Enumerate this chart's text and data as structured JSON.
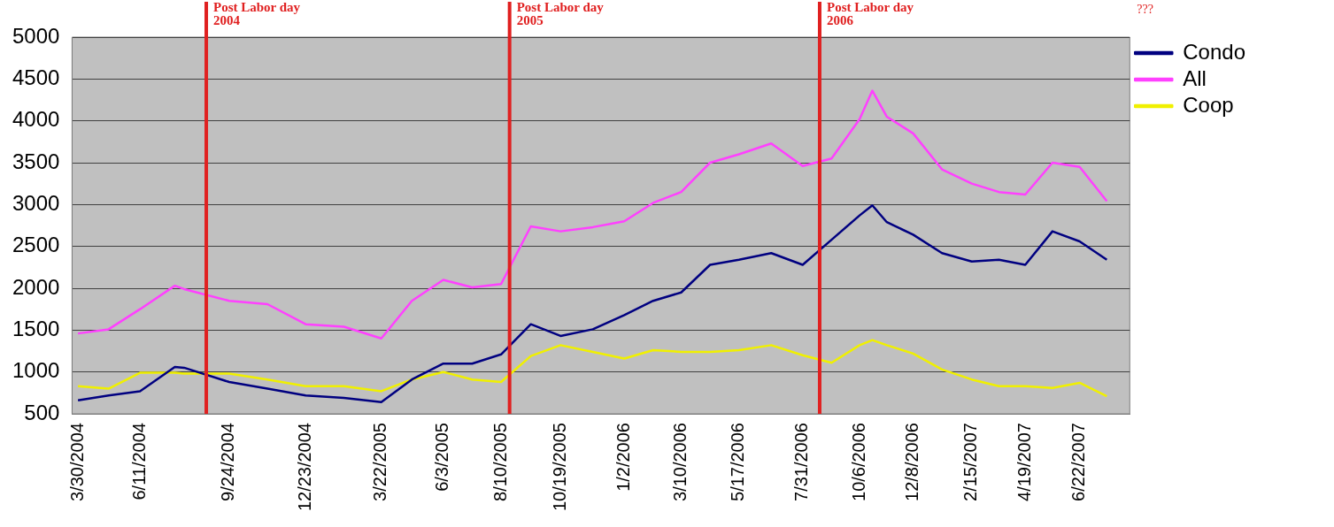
{
  "chart_data": {
    "type": "line",
    "x": [
      "2004-03-30",
      "2004-05-05",
      "2004-06-11",
      "2004-07-22",
      "2004-08-02",
      "2004-09-24",
      "2004-11-08",
      "2004-12-23",
      "2005-02-06",
      "2005-03-22",
      "2005-04-27",
      "2005-06-03",
      "2005-07-07",
      "2005-08-10",
      "2005-09-14",
      "2005-10-19",
      "2005-11-26",
      "2006-01-02",
      "2006-02-05",
      "2006-03-10",
      "2006-04-13",
      "2006-05-17",
      "2006-06-24",
      "2006-07-31",
      "2006-09-03",
      "2006-10-06",
      "2006-10-21",
      "2006-11-07",
      "2006-12-08",
      "2007-01-11",
      "2007-02-15",
      "2007-03-19",
      "2007-04-19",
      "2007-05-21",
      "2007-06-22",
      "2007-07-24"
    ],
    "series": [
      {
        "name": "Condo",
        "color": "#000080",
        "values": [
          660,
          720,
          770,
          1060,
          1050,
          880,
          800,
          720,
          690,
          640,
          910,
          1100,
          1100,
          1210,
          1570,
          1430,
          1510,
          1680,
          1850,
          1950,
          2280,
          2340,
          2420,
          2280,
          2580,
          2870,
          2990,
          2790,
          2640,
          2420,
          2320,
          2340,
          2280,
          2680,
          2560,
          2340
        ]
      },
      {
        "name": "All",
        "color": "#ff40ff",
        "values": [
          1460,
          1510,
          1750,
          2030,
          1990,
          1850,
          1810,
          1570,
          1540,
          1400,
          1850,
          2100,
          2010,
          2050,
          2740,
          2680,
          2730,
          2800,
          3020,
          3150,
          3500,
          3600,
          3730,
          3460,
          3550,
          4020,
          4360,
          4050,
          3850,
          3420,
          3250,
          3150,
          3120,
          3500,
          3450,
          3040
        ]
      },
      {
        "name": "Coop",
        "color": "#f0f000",
        "values": [
          830,
          800,
          990,
          990,
          980,
          980,
          910,
          830,
          830,
          770,
          910,
          1000,
          910,
          880,
          1190,
          1320,
          1240,
          1160,
          1260,
          1240,
          1240,
          1260,
          1320,
          1200,
          1110,
          1320,
          1380,
          1320,
          1220,
          1030,
          910,
          830,
          830,
          810,
          870,
          710
        ]
      }
    ],
    "xlim": [
      "2004-03-23",
      "2007-08-20"
    ],
    "xticks": [
      {
        "value": "2004-03-30",
        "label": "3/30/2004"
      },
      {
        "value": "2004-06-11",
        "label": "6/11/2004"
      },
      {
        "value": "2004-09-24",
        "label": "9/24/2004"
      },
      {
        "value": "2004-12-23",
        "label": "12/23/2004"
      },
      {
        "value": "2005-03-22",
        "label": "3/22/2005"
      },
      {
        "value": "2005-06-03",
        "label": "6/3/2005"
      },
      {
        "value": "2005-08-10",
        "label": "8/10/2005"
      },
      {
        "value": "2005-10-19",
        "label": "10/19/2005"
      },
      {
        "value": "2006-01-02",
        "label": "1/2/2006"
      },
      {
        "value": "2006-03-10",
        "label": "3/10/2006"
      },
      {
        "value": "2006-05-17",
        "label": "5/17/2006"
      },
      {
        "value": "2006-07-31",
        "label": "7/31/2006"
      },
      {
        "value": "2006-10-06",
        "label": "10/6/2006"
      },
      {
        "value": "2006-12-08",
        "label": "12/8/2006"
      },
      {
        "value": "2007-02-15",
        "label": "2/15/2007"
      },
      {
        "value": "2007-04-19",
        "label": "4/19/2007"
      },
      {
        "value": "2007-06-22",
        "label": "6/22/2007"
      }
    ],
    "ylim": [
      500,
      5000
    ],
    "yticks": [
      500,
      1000,
      1500,
      2000,
      2500,
      3000,
      3500,
      4000,
      4500,
      5000
    ],
    "grid": "y",
    "legend": "right",
    "marker": "none",
    "line_style": "solid",
    "ref_lines": [
      {
        "axis": "x",
        "value": "2004-08-28",
        "label": "Post Labor day 2004",
        "color": "#e02020"
      },
      {
        "axis": "x",
        "value": "2005-08-20",
        "label": "Post Labor day 2005",
        "color": "#e02020"
      },
      {
        "axis": "x",
        "value": "2006-08-20",
        "label": "Post Labor day 2006",
        "color": "#e02020"
      }
    ],
    "annotations": [
      "???"
    ]
  }
}
